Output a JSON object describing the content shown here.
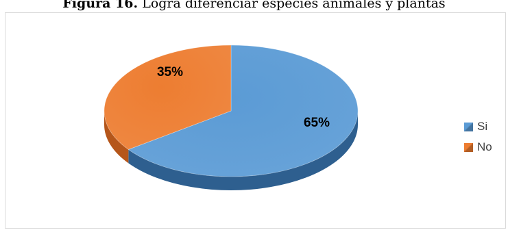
{
  "caption": {
    "lead": "Figura 16.",
    "text": " Logra diferenciar especies animales y plantas"
  },
  "chart_data": {
    "type": "pie",
    "style": "3d",
    "legend_position": "right",
    "slices": [
      {
        "label": "Si",
        "value": 65,
        "data_label": "65%",
        "color": "#5B9BD5",
        "side_color": "#2E5F8F"
      },
      {
        "label": "No",
        "value": 35,
        "data_label": "35%",
        "color": "#ED7D31",
        "side_color": "#B5561A"
      }
    ]
  }
}
